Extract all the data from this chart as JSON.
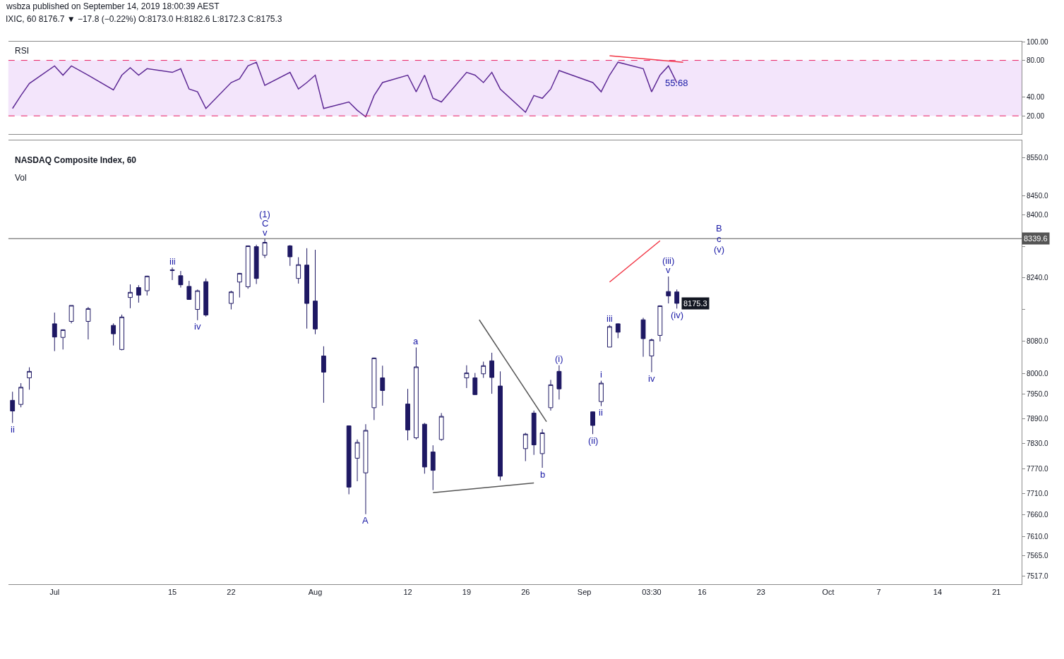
{
  "chart_data": [
    {
      "type": "line",
      "title": "RSI",
      "x": [
        "2019-06-26",
        "2019-06-27",
        "2019-06-28",
        "2019-07-01",
        "2019-07-02",
        "2019-07-03",
        "2019-07-05",
        "2019-07-08",
        "2019-07-09",
        "2019-07-10",
        "2019-07-11",
        "2019-07-12",
        "2019-07-15",
        "2019-07-16",
        "2019-07-17",
        "2019-07-18",
        "2019-07-19",
        "2019-07-22",
        "2019-07-23",
        "2019-07-24",
        "2019-07-25",
        "2019-07-26",
        "2019-07-29",
        "2019-07-30",
        "2019-07-31",
        "2019-08-01",
        "2019-08-02",
        "2019-08-05",
        "2019-08-06",
        "2019-08-07",
        "2019-08-08",
        "2019-08-09",
        "2019-08-12",
        "2019-08-13",
        "2019-08-14",
        "2019-08-15",
        "2019-08-16",
        "2019-08-19",
        "2019-08-20",
        "2019-08-21",
        "2019-08-22",
        "2019-08-23",
        "2019-08-26",
        "2019-08-27",
        "2019-08-28",
        "2019-08-29",
        "2019-08-30",
        "2019-09-03",
        "2019-09-04",
        "2019-09-05",
        "2019-09-06",
        "2019-09-09",
        "2019-09-10",
        "2019-09-11",
        "2019-09-12",
        "2019-09-13"
      ],
      "series": [
        {
          "color": "#5e2a95",
          "values": [
            28,
            42,
            55,
            74,
            64,
            74,
            64,
            48,
            64,
            72,
            64,
            71,
            67,
            71,
            49,
            46,
            28,
            56,
            60,
            74,
            78,
            53,
            67,
            49,
            56,
            64,
            28,
            35,
            26,
            19,
            42,
            56,
            64,
            46,
            64,
            39,
            35,
            67,
            64,
            56,
            67,
            49,
            24,
            42,
            39,
            49,
            69,
            56,
            46,
            64,
            78,
            71,
            46,
            64,
            74,
            55.68
          ]
        },
        {
          "type": "line",
          "color": "#f23645",
          "x": [
            "2019-09-05",
            "2019-09-13T18:00"
          ],
          "values": [
            85,
            78
          ]
        }
      ],
      "ylim": [
        0,
        100
      ],
      "yticks": [
        {
          "value": 100,
          "label": "100.00"
        },
        {
          "value": 80,
          "label": "80.00"
        },
        {
          "value": 40,
          "label": "40.00"
        },
        {
          "value": 20,
          "label": "20.00"
        }
      ],
      "xlim": [
        "2019-06-25T12:00",
        "2019-10-24"
      ],
      "tick_labels": "y",
      "bands": [
        {
          "axis": "y",
          "from": 20,
          "to": 80,
          "color": "#f3e5fb"
        }
      ],
      "ref_lines": [
        {
          "axis": "y",
          "value": 80,
          "color": "#e91e63",
          "line_style": "dashed"
        },
        {
          "axis": "y",
          "value": 20,
          "color": "#e91e63",
          "line_style": "dashed"
        }
      ],
      "annotations": [
        "wsbza published on September 14, 2019 18:00:39 AEST",
        "IXIC, 60 8176.7 ▼ −17.8 (−0.22%) O:8173.0 H:8182.6 L:8172.3 C:8175.3",
        {
          "text": "55.68",
          "x": "2019-09-13",
          "y": 55.68
        }
      ]
    },
    {
      "type": "candlestick",
      "title": "NASDAQ Composite Index, 60",
      "subtitle": "Vol",
      "color": "#1e1863",
      "x": [
        "2019-06-26",
        "2019-06-27",
        "2019-06-28",
        "2019-07-01",
        "2019-07-02",
        "2019-07-03",
        "2019-07-05",
        "2019-07-08",
        "2019-07-09",
        "2019-07-10",
        "2019-07-11",
        "2019-07-12",
        "2019-07-15",
        "2019-07-16",
        "2019-07-17",
        "2019-07-18",
        "2019-07-19",
        "2019-07-22",
        "2019-07-23",
        "2019-07-24",
        "2019-07-25",
        "2019-07-26",
        "2019-07-29",
        "2019-07-30",
        "2019-07-31",
        "2019-08-01",
        "2019-08-02",
        "2019-08-05",
        "2019-08-06",
        "2019-08-07",
        "2019-08-08",
        "2019-08-09",
        "2019-08-12",
        "2019-08-13",
        "2019-08-14",
        "2019-08-15",
        "2019-08-16",
        "2019-08-19",
        "2019-08-20",
        "2019-08-21",
        "2019-08-22",
        "2019-08-23",
        "2019-08-26",
        "2019-08-27",
        "2019-08-28",
        "2019-08-29",
        "2019-08-30",
        "2019-09-03",
        "2019-09-04",
        "2019-09-05",
        "2019-09-06",
        "2019-09-09",
        "2019-09-10",
        "2019-09-11",
        "2019-09-12",
        "2019-09-13"
      ],
      "ohlc": [
        [
          7935,
          7956,
          7880,
          7909
        ],
        [
          7925,
          7977,
          7918,
          7967
        ],
        [
          7990,
          8016,
          7961,
          8006
        ],
        [
          8124,
          8152,
          8056,
          8091
        ],
        [
          8090,
          8110,
          8060,
          8109
        ],
        [
          8130,
          8170,
          8125,
          8170
        ],
        [
          8130,
          8166,
          8085,
          8162
        ],
        [
          8120,
          8125,
          8070,
          8099
        ],
        [
          8060,
          8147,
          8058,
          8141
        ],
        [
          8190,
          8223,
          8163,
          8203
        ],
        [
          8215,
          8221,
          8177,
          8196
        ],
        [
          8207,
          8245,
          8195,
          8244
        ],
        [
          8260,
          8266,
          8234,
          8258
        ],
        [
          8245,
          8257,
          8215,
          8222
        ],
        [
          8218,
          8232,
          8185,
          8185
        ],
        [
          8160,
          8210,
          8133,
          8207
        ],
        [
          8230,
          8238,
          8142,
          8146
        ],
        [
          8175,
          8207,
          8160,
          8204
        ],
        [
          8229,
          8252,
          8190,
          8251
        ],
        [
          8217,
          8322,
          8212,
          8321
        ],
        [
          8319,
          8324,
          8224,
          8238
        ],
        [
          8297,
          8339.6,
          8290,
          8330
        ],
        [
          8321,
          8323,
          8270,
          8293
        ],
        [
          8238,
          8292,
          8225,
          8273
        ],
        [
          8272,
          8315,
          8112,
          8175
        ],
        [
          8181,
          8311,
          8098,
          8111
        ],
        [
          8044,
          8068,
          7929,
          8004
        ],
        [
          7873,
          7874,
          7709,
          7726
        ],
        [
          7795,
          7840,
          7740,
          7833
        ],
        [
          7760,
          7877,
          7662,
          7862
        ],
        [
          7917,
          8040,
          7887,
          8039
        ],
        [
          7990,
          8020,
          7922,
          7959
        ],
        [
          7926,
          7963,
          7838,
          7863
        ],
        [
          7844,
          8065,
          7840,
          8017
        ],
        [
          7877,
          7880,
          7758,
          7774
        ],
        [
          7810,
          7826,
          7719,
          7766
        ],
        [
          7840,
          7904,
          7837,
          7896
        ],
        [
          7990,
          8021,
          7965,
          8002
        ],
        [
          7990,
          8002,
          7948,
          7949
        ],
        [
          8000,
          8030,
          7990,
          8020
        ],
        [
          8032,
          8052,
          7951,
          7991
        ],
        [
          7970,
          8006,
          7742,
          7752
        ],
        [
          7818,
          7856,
          7788,
          7853
        ],
        [
          7904,
          7910,
          7803,
          7827
        ],
        [
          7806,
          7865,
          7772,
          7856
        ],
        [
          7917,
          7985,
          7910,
          7973
        ],
        [
          8006,
          8021,
          7937,
          7963
        ],
        [
          7907,
          7908,
          7853,
          7874
        ],
        [
          7932,
          7983,
          7921,
          7977
        ],
        [
          8066,
          8121,
          8066,
          8117
        ],
        [
          8124,
          8125,
          8088,
          8103
        ],
        [
          8134,
          8139,
          8042,
          8087
        ],
        [
          8044,
          8087,
          8004,
          8084
        ],
        [
          8095,
          8170,
          8080,
          8169
        ],
        [
          8205,
          8243,
          8175,
          8194
        ],
        [
          8204,
          8210,
          8162,
          8175.3
        ]
      ],
      "series": [
        {
          "type": "line",
          "color": "#555555",
          "x": [
            "2019-08-20T12:00",
            "2019-08-28T12:00"
          ],
          "values": [
            8134,
            7883
          ]
        },
        {
          "type": "line",
          "color": "#555555",
          "x": [
            "2019-08-15",
            "2019-08-27"
          ],
          "values": [
            7713,
            7736
          ]
        },
        {
          "type": "line",
          "color": "#f23645",
          "x": [
            "2019-09-05",
            "2019-09-11"
          ],
          "values": [
            8229,
            8334
          ]
        }
      ],
      "log": "y",
      "ylim": [
        7498,
        8595
      ],
      "yticks": [
        {
          "value": 8550,
          "label": "8550.0"
        },
        {
          "value": 8450,
          "label": "8450.0"
        },
        {
          "value": 8400,
          "label": "8400.0"
        },
        {
          "value": 8320,
          "label": null
        },
        {
          "value": 8240,
          "label": "8240.0"
        },
        {
          "value": 8160,
          "label": null
        },
        {
          "value": 8080,
          "label": "8080.0"
        },
        {
          "value": 8000,
          "label": "8000.0"
        },
        {
          "value": 7950,
          "label": "7950.0"
        },
        {
          "value": 7890,
          "label": "7890.0"
        },
        {
          "value": 7830,
          "label": "7830.0"
        },
        {
          "value": 7770,
          "label": "7770.0"
        },
        {
          "value": 7710,
          "label": "7710.0"
        },
        {
          "value": 7660,
          "label": "7660.0"
        },
        {
          "value": 7610,
          "label": "7610.0"
        },
        {
          "value": 7565,
          "label": "7565.0"
        },
        {
          "value": 7517,
          "label": "7517.0"
        }
      ],
      "xlim": [
        "2019-06-25T12:00",
        "2019-10-24"
      ],
      "xticks": [
        {
          "value": "2019-07-01",
          "label": "Jul"
        },
        {
          "value": "2019-07-15",
          "label": "15"
        },
        {
          "value": "2019-07-22",
          "label": "22"
        },
        {
          "value": "2019-08-01",
          "label": "Aug"
        },
        {
          "value": "2019-08-12",
          "label": "12"
        },
        {
          "value": "2019-08-19",
          "label": "19"
        },
        {
          "value": "2019-08-26",
          "label": "26"
        },
        {
          "value": "2019-09-02",
          "label": "Sep"
        },
        {
          "value": "2019-09-10",
          "label": "03:30"
        },
        {
          "value": "2019-09-16",
          "label": "16"
        },
        {
          "value": "2019-09-23",
          "label": "23"
        },
        {
          "value": "2019-10-01",
          "label": "Oct"
        },
        {
          "value": "2019-10-07",
          "label": "7"
        },
        {
          "value": "2019-10-14",
          "label": "14"
        },
        {
          "value": "2019-10-21",
          "label": "21"
        }
      ],
      "ref_lines": [
        {
          "axis": "y",
          "value": 8339.6,
          "label": "8339.6",
          "color": "#555555"
        }
      ],
      "annotations": [
        {
          "text": "ii",
          "x": "2019-06-26",
          "y": 7880
        },
        {
          "text": "iii",
          "x": "2019-07-15",
          "y": 8266
        },
        {
          "text": "iv",
          "x": "2019-07-18",
          "y": 8133
        },
        {
          "text": "v",
          "x": "2019-07-26",
          "y": 8339.6
        },
        {
          "text": "C",
          "x": "2019-07-26",
          "y": 8339.6
        },
        {
          "text": "(1)",
          "x": "2019-07-26",
          "y": 8339.6
        },
        {
          "text": "A",
          "x": "2019-08-07",
          "y": 7662
        },
        {
          "text": "a",
          "x": "2019-08-13",
          "y": 8065
        },
        {
          "text": "b",
          "x": "2019-08-28",
          "y": 7772
        },
        {
          "text": "(i)",
          "x": "2019-08-30",
          "y": 8021
        },
        {
          "text": "(ii)",
          "x": "2019-09-03",
          "y": 7853
        },
        {
          "text": "i",
          "x": "2019-09-04",
          "y": 7983
        },
        {
          "text": "ii",
          "x": "2019-09-04",
          "y": 7921
        },
        {
          "text": "iii",
          "x": "2019-09-05",
          "y": 8121
        },
        {
          "text": "iv",
          "x": "2019-09-10",
          "y": 8004
        },
        {
          "text": "v",
          "x": "2019-09-12",
          "y": 8243
        },
        {
          "text": "(iii)",
          "x": "2019-09-12",
          "y": 8243
        },
        {
          "text": "(iv)",
          "x": "2019-09-13",
          "y": 8162
        },
        {
          "text": "c",
          "x": "2019-09-18",
          "y": 8339.6
        },
        {
          "text": "B",
          "x": "2019-09-18",
          "y": 8339.6
        },
        {
          "text": "(v)",
          "x": "2019-09-18",
          "y": 8339.6
        },
        {
          "text": "8175.3",
          "x": "2019-09-13",
          "y": 8175.3
        }
      ]
    }
  ]
}
